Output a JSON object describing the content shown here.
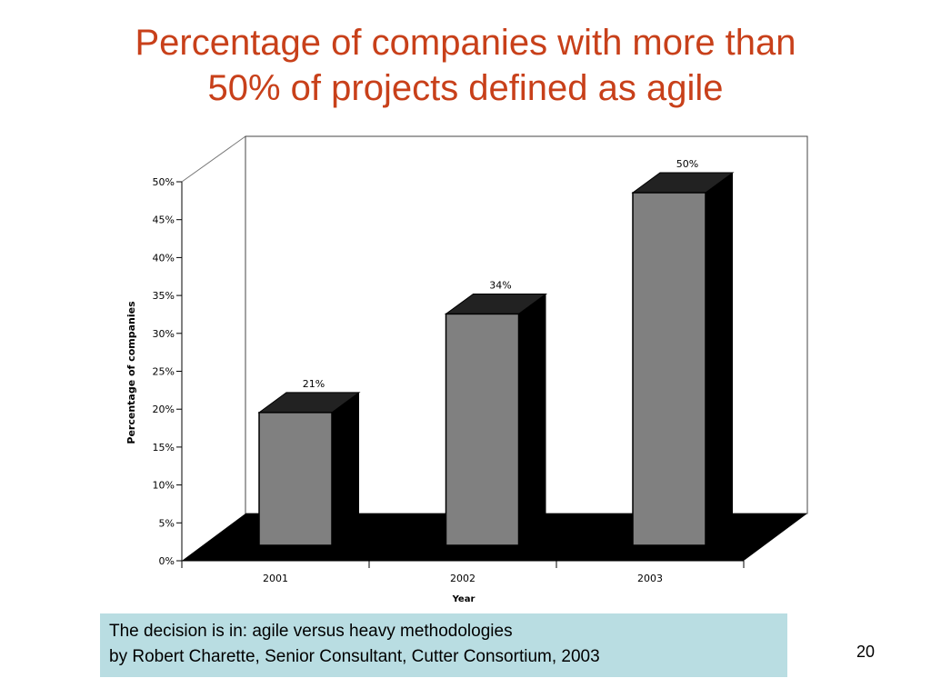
{
  "slide": {
    "title_line1": "Percentage of companies with more than",
    "title_line2": "50% of projects defined as agile",
    "title_color": "#c8401a",
    "caption_line1": "The decision is in: agile versus heavy methodologies",
    "caption_line2": "by Robert Charette, Senior Consultant, Cutter Consortium, 2003",
    "caption_bg": "#b9dde2",
    "page_number": "20"
  },
  "chart_data": {
    "type": "bar",
    "style": "3d",
    "categories": [
      "2001",
      "2002",
      "2003"
    ],
    "values": [
      21,
      34,
      50
    ],
    "data_labels": [
      "21%",
      "34%",
      "50%"
    ],
    "xlabel": "Year",
    "ylabel": "Percentage of companies",
    "ylim": [
      0,
      50
    ],
    "yticks": [
      "0%",
      "5%",
      "10%",
      "15%",
      "20%",
      "25%",
      "30%",
      "35%",
      "40%",
      "45%",
      "50%"
    ],
    "bar_color": "#808080",
    "grid": false,
    "legend": "none"
  }
}
